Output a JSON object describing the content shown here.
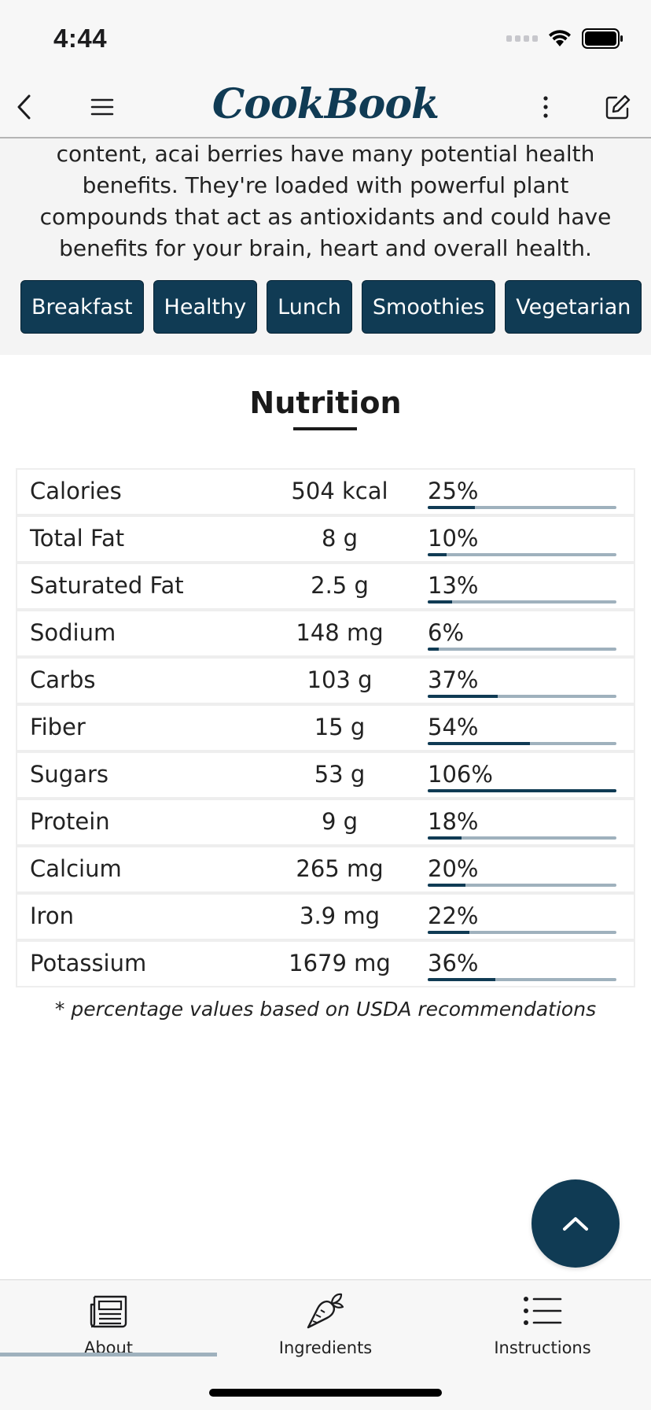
{
  "status_bar": {
    "time": "4:44"
  },
  "nav": {
    "logo": "CookBook"
  },
  "description": "content, acai berries have many potential health benefits. They're loaded with powerful plant compounds that act as antioxidants and could have benefits for your brain, heart and overall health.",
  "tags": [
    "Breakfast",
    "Healthy",
    "Lunch",
    "Smoothies",
    "Vegetarian"
  ],
  "nutrition": {
    "title": "Nutrition",
    "rows": [
      {
        "name": "Calories",
        "amount": "504 kcal",
        "percent": "25%",
        "fill": 25
      },
      {
        "name": "Total Fat",
        "amount": "8 g",
        "percent": "10%",
        "fill": 10
      },
      {
        "name": "Saturated Fat",
        "amount": "2.5 g",
        "percent": "13%",
        "fill": 13
      },
      {
        "name": "Sodium",
        "amount": "148 mg",
        "percent": "6%",
        "fill": 6
      },
      {
        "name": "Carbs",
        "amount": "103 g",
        "percent": "37%",
        "fill": 37
      },
      {
        "name": "Fiber",
        "amount": "15 g",
        "percent": "54%",
        "fill": 54
      },
      {
        "name": "Sugars",
        "amount": "53 g",
        "percent": "106%",
        "fill": 100
      },
      {
        "name": "Protein",
        "amount": "9 g",
        "percent": "18%",
        "fill": 18
      },
      {
        "name": "Calcium",
        "amount": "265 mg",
        "percent": "20%",
        "fill": 20
      },
      {
        "name": "Iron",
        "amount": "3.9 mg",
        "percent": "22%",
        "fill": 22
      },
      {
        "name": "Potassium",
        "amount": "1679 mg",
        "percent": "36%",
        "fill": 36
      }
    ],
    "footnote": "* percentage values based on USDA recommendations"
  },
  "tab_bar": {
    "tabs": [
      {
        "label": "About",
        "icon": "newspaper-icon",
        "active": true
      },
      {
        "label": "Ingredients",
        "icon": "carrot-icon",
        "active": false
      },
      {
        "label": "Instructions",
        "icon": "list-icon",
        "active": false
      }
    ]
  },
  "colors": {
    "brand": "#103b54",
    "bar_track": "#9fb1bd"
  }
}
